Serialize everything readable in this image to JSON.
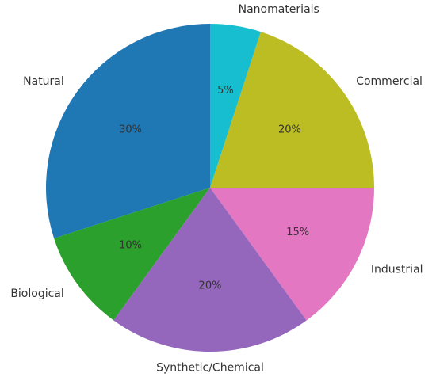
{
  "chart_data": {
    "type": "pie",
    "categories": [
      "Natural",
      "Biological",
      "Synthetic/Chemical",
      "Industrial",
      "Commercial",
      "Nanomaterials"
    ],
    "values": [
      30,
      10,
      20,
      15,
      20,
      5
    ],
    "value_labels": [
      "30%",
      "10%",
      "20%",
      "15%",
      "20%",
      "5%"
    ],
    "colors": [
      "#1f77b4",
      "#2ca02c",
      "#9467bd",
      "#e377c2",
      "#bcbd22",
      "#17becf"
    ],
    "start_angle": 90,
    "direction": "counterclockwise"
  }
}
